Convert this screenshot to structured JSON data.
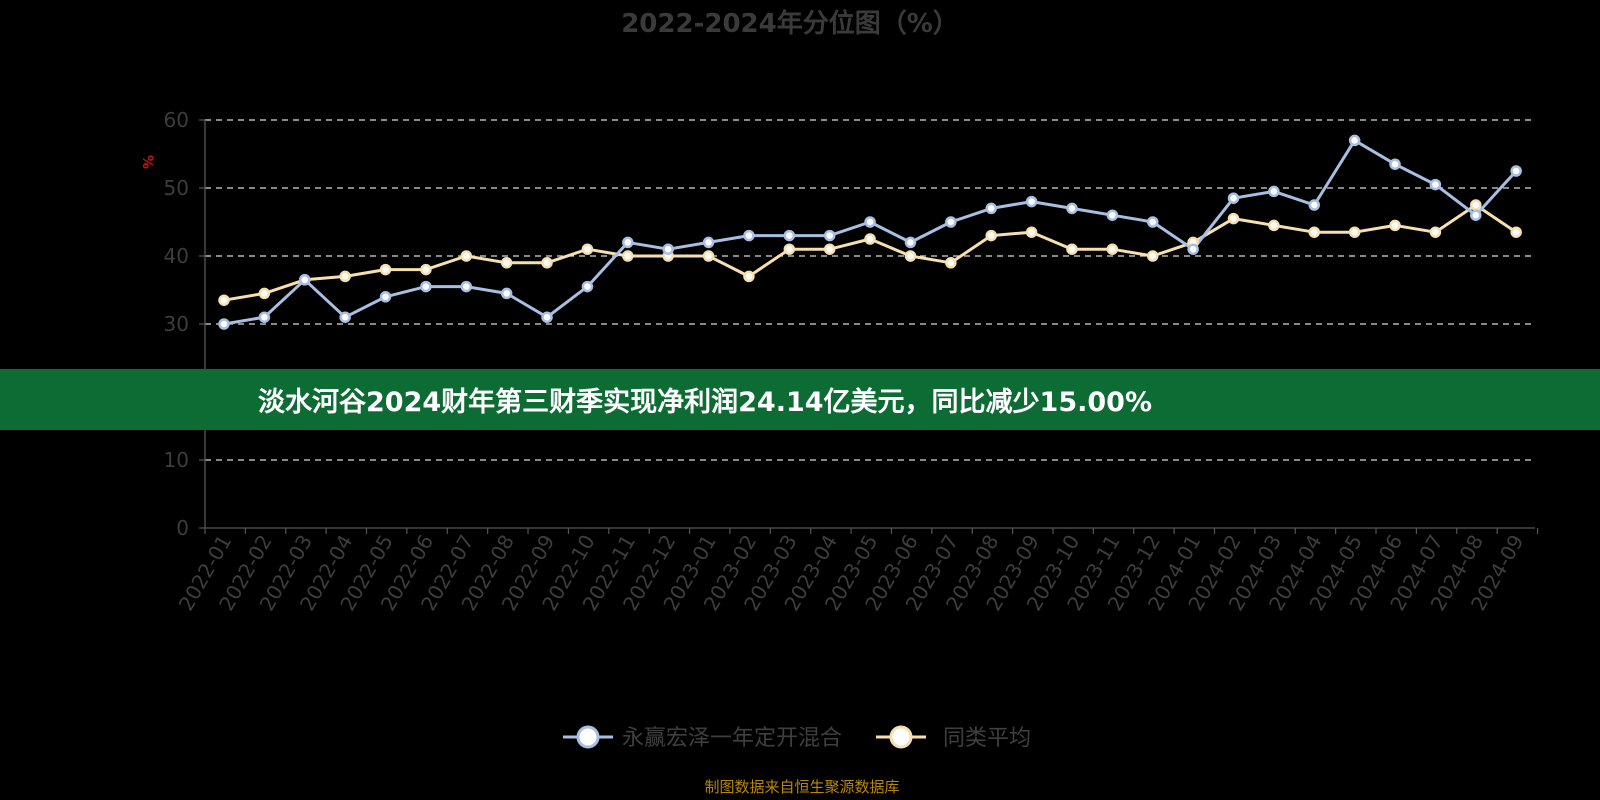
{
  "chart_data": {
    "type": "line",
    "title": "2022-2024年分位图（%）",
    "ylabel": "%",
    "ylim": [
      0,
      60
    ],
    "yticks": [
      0,
      10,
      20,
      30,
      40,
      50,
      60
    ],
    "grid": true,
    "legend_position": "bottom",
    "categories": [
      "2022-01",
      "2022-02",
      "2022-03",
      "2022-04",
      "2022-05",
      "2022-06",
      "2022-07",
      "2022-08",
      "2022-09",
      "2022-10",
      "2022-11",
      "2022-12",
      "2023-01",
      "2023-02",
      "2023-03",
      "2023-04",
      "2023-05",
      "2023-06",
      "2023-07",
      "2023-08",
      "2023-09",
      "2023-10",
      "2023-11",
      "2023-12",
      "2024-01",
      "2024-02",
      "2024-03",
      "2024-04",
      "2024-05",
      "2024-06",
      "2024-07",
      "2024-08",
      "2024-09"
    ],
    "series": [
      {
        "name": "永赢宏泽一年定开混合",
        "color": "#a7bfe3",
        "values": [
          30,
          31,
          36.5,
          31,
          34,
          35.5,
          35.5,
          34.5,
          31,
          35.5,
          42,
          41,
          42,
          43,
          43,
          43,
          45,
          42,
          45,
          47,
          48,
          47,
          46,
          45,
          41,
          48.5,
          49.5,
          47.5,
          57,
          53.5,
          50.5,
          46,
          52.5
        ]
      },
      {
        "name": "同类平均",
        "color": "#f7dfae",
        "values": [
          33.5,
          34.5,
          36.5,
          37,
          38,
          38,
          40,
          39,
          39,
          41,
          40,
          40,
          40,
          37,
          41,
          41,
          42.5,
          40,
          39,
          43,
          43.5,
          41,
          41,
          40,
          42,
          45.5,
          44.5,
          43.5,
          43.5,
          44.5,
          43.5,
          47.5,
          43.5
        ]
      }
    ]
  },
  "banner": {
    "text": "淡水河谷2024财年第三财季实现净利润24.14亿美元，同比减少15.00%"
  },
  "source": "制图数据来自恒生聚源数据库"
}
